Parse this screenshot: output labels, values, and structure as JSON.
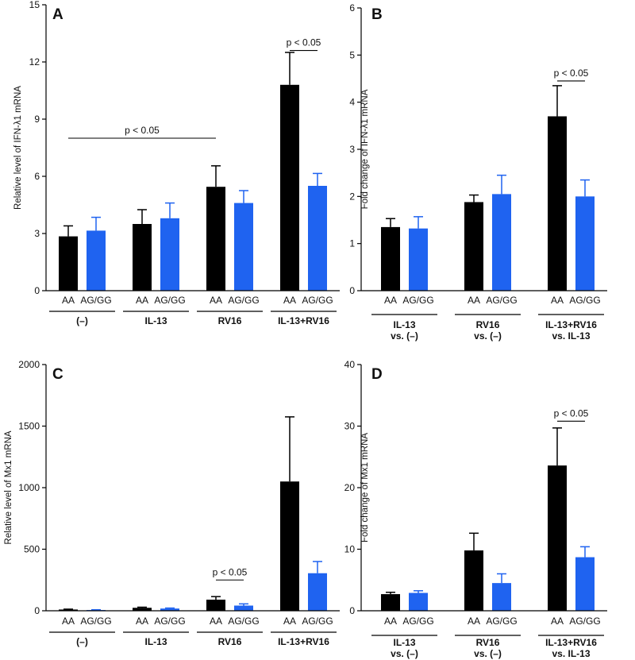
{
  "colors": {
    "AA": "#000000",
    "AG/GG": "#1f63f0",
    "axis": "#000000"
  },
  "chart_data": [
    {
      "panel": "A",
      "type": "bar",
      "ylabel": "Relative level of IFN-λ1 mRNA",
      "ylim": [
        0,
        15
      ],
      "yticks": [
        "0",
        "3",
        "6",
        "9",
        "12",
        "15"
      ],
      "genotypes": [
        "AA",
        "AG/GG"
      ],
      "groups": [
        {
          "label": "(–)",
          "values": [
            2.85,
            3.15
          ],
          "errors": [
            0.55,
            0.7
          ]
        },
        {
          "label": "IL-13",
          "values": [
            3.5,
            3.8
          ],
          "errors": [
            0.75,
            0.8
          ]
        },
        {
          "label": "RV16",
          "values": [
            5.45,
            4.6
          ],
          "errors": [
            1.1,
            0.65
          ]
        },
        {
          "label": "IL-13+RV16",
          "values": [
            10.8,
            5.5
          ],
          "errors": [
            1.7,
            0.65
          ]
        }
      ],
      "significance": [
        {
          "text": "p < 0.05",
          "from": [
            0,
            0
          ],
          "to": [
            2,
            0
          ],
          "y": 8
        },
        {
          "text": "p < 0.05",
          "from": [
            3,
            0
          ],
          "to": [
            3,
            1
          ],
          "y": 12.6
        }
      ]
    },
    {
      "panel": "B",
      "type": "bar",
      "ylabel": "Fold change of IFN-λ1 mRNA",
      "ylim": [
        0,
        6
      ],
      "yticks": [
        "0",
        "1",
        "2",
        "3",
        "4",
        "5",
        "6"
      ],
      "genotypes": [
        "AA",
        "AG/GG"
      ],
      "groups": [
        {
          "label": "IL-13",
          "label2": "vs. (–)",
          "values": [
            1.35,
            1.32
          ],
          "errors": [
            0.18,
            0.25
          ]
        },
        {
          "label": "RV16",
          "label2": "vs. (–)",
          "values": [
            1.88,
            2.05
          ],
          "errors": [
            0.15,
            0.4
          ]
        },
        {
          "label": "IL-13+RV16",
          "label2": "vs. IL-13",
          "values": [
            3.7,
            2.0
          ],
          "errors": [
            0.65,
            0.35
          ]
        }
      ],
      "significance": [
        {
          "text": "p < 0.05",
          "from": [
            2,
            0
          ],
          "to": [
            2,
            1
          ],
          "y": 4.45
        }
      ]
    },
    {
      "panel": "C",
      "type": "bar",
      "ylabel": "Relative level of Mx1 mRNA",
      "ylim": [
        0,
        2000
      ],
      "yticks": [
        "0",
        "500",
        "1000",
        "1500",
        "2000"
      ],
      "genotypes": [
        "AA",
        "AG/GG"
      ],
      "groups": [
        {
          "label": "(–)",
          "values": [
            10,
            6
          ],
          "errors": [
            3,
            2
          ]
        },
        {
          "label": "IL-13",
          "values": [
            24,
            18
          ],
          "errors": [
            5,
            4
          ]
        },
        {
          "label": "RV16",
          "values": [
            90,
            42
          ],
          "errors": [
            25,
            14
          ]
        },
        {
          "label": "IL-13+RV16",
          "values": [
            1050,
            305
          ],
          "errors": [
            525,
            95
          ]
        }
      ],
      "significance": [
        {
          "text": "p < 0.05",
          "from": [
            2,
            0
          ],
          "to": [
            2,
            1
          ],
          "y": 250
        }
      ]
    },
    {
      "panel": "D",
      "type": "bar",
      "ylabel": "Fold change of Mx1 mRNA",
      "ylim": [
        0,
        40
      ],
      "yticks": [
        "0",
        "10",
        "20",
        "30",
        "40"
      ],
      "genotypes": [
        "AA",
        "AG/GG"
      ],
      "groups": [
        {
          "label": "IL-13",
          "label2": "vs. (–)",
          "values": [
            2.7,
            2.9
          ],
          "errors": [
            0.3,
            0.35
          ]
        },
        {
          "label": "RV16",
          "label2": "vs. (–)",
          "values": [
            9.8,
            4.5
          ],
          "errors": [
            2.8,
            1.5
          ]
        },
        {
          "label": "IL-13+RV16",
          "label2": "vs. IL-13",
          "values": [
            23.6,
            8.7
          ],
          "errors": [
            6.1,
            1.7
          ]
        }
      ],
      "significance": [
        {
          "text": "p < 0.05",
          "from": [
            2,
            0
          ],
          "to": [
            2,
            1
          ],
          "y": 30.8
        }
      ]
    }
  ]
}
